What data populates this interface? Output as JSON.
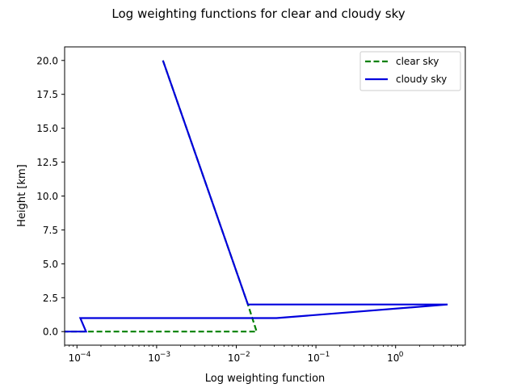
{
  "chart_data": {
    "type": "line",
    "title": "Log weighting functions for clear and cloudy sky",
    "xlabel": "Log weighting function",
    "ylabel": "Height [km]",
    "xscale": "log",
    "xlim": [
      7e-05,
      7.5
    ],
    "ylim": [
      -1.0,
      21.0
    ],
    "xticks": [
      {
        "value": 0.0001,
        "base": "10",
        "exp": "−4"
      },
      {
        "value": 0.001,
        "base": "10",
        "exp": "−3"
      },
      {
        "value": 0.01,
        "base": "10",
        "exp": "−2"
      },
      {
        "value": 0.1,
        "base": "10",
        "exp": "−1"
      },
      {
        "value": 1,
        "base": "10",
        "exp": "0"
      }
    ],
    "yticks": [
      {
        "value": 0.0,
        "label": "0.0"
      },
      {
        "value": 2.5,
        "label": "2.5"
      },
      {
        "value": 5.0,
        "label": "5.0"
      },
      {
        "value": 7.5,
        "label": "7.5"
      },
      {
        "value": 10.0,
        "label": "10.0"
      },
      {
        "value": 12.5,
        "label": "12.5"
      },
      {
        "value": 15.0,
        "label": "15.0"
      },
      {
        "value": 17.5,
        "label": "17.5"
      },
      {
        "value": 20.0,
        "label": "20.0"
      }
    ],
    "grid": false,
    "legend_position": "top-right",
    "series": [
      {
        "name": "clear sky",
        "color": "#008000",
        "style": "dashed",
        "points": [
          {
            "x": 0.0012,
            "y": 20.0
          },
          {
            "x": 0.014,
            "y": 2.0
          },
          {
            "x": 0.018,
            "y": 0.0
          },
          {
            "x": 7e-05,
            "y": 0.0
          }
        ]
      },
      {
        "name": "cloudy sky",
        "color": "#0000dd",
        "style": "solid",
        "points": [
          {
            "x": 0.0012,
            "y": 20.0
          },
          {
            "x": 0.014,
            "y": 2.0
          },
          {
            "x": 4.5,
            "y": 2.0
          },
          {
            "x": 0.032,
            "y": 1.0
          },
          {
            "x": 0.00011,
            "y": 1.0
          },
          {
            "x": 0.00013,
            "y": 0.0
          },
          {
            "x": 7e-05,
            "y": 0.0
          }
        ]
      }
    ]
  }
}
